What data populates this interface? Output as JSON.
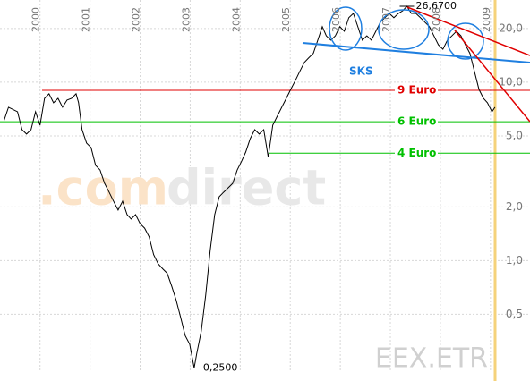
{
  "chart_data": {
    "type": "line",
    "log_scale": true,
    "grid": true,
    "color": "#000000",
    "xlim": [
      1999.2,
      2009.79
    ],
    "xticks": [
      2000,
      2001,
      2002,
      2003,
      2004,
      2005,
      2006,
      2007,
      2008,
      2009
    ],
    "ylim": [
      0.24,
      28.9
    ],
    "yticks": [
      {
        "value": 0.5,
        "label": "0,5"
      },
      {
        "value": 1,
        "label": "1,0"
      },
      {
        "value": 2,
        "label": "2,0"
      },
      {
        "value": 5,
        "label": "5,0"
      },
      {
        "value": 10,
        "label": "10,0"
      },
      {
        "value": 20,
        "label": "20,0"
      }
    ],
    "x": [
      1999.28,
      1999.37,
      1999.55,
      1999.64,
      1999.73,
      1999.82,
      1999.91,
      2000.0,
      2000.09,
      2000.18,
      2000.27,
      2000.36,
      2000.45,
      2000.54,
      2000.63,
      2000.72,
      2000.77,
      2000.84,
      2000.93,
      2001.02,
      2001.11,
      2001.2,
      2001.29,
      2001.38,
      2001.47,
      2001.56,
      2001.65,
      2001.74,
      2001.82,
      2001.91,
      2002.0,
      2002.09,
      2002.18,
      2002.27,
      2002.36,
      2002.45,
      2002.54,
      2002.63,
      2002.72,
      2002.81,
      2002.9,
      2002.99,
      2003.08,
      2003.13,
      2003.22,
      2003.31,
      2003.4,
      2003.49,
      2003.58,
      2003.67,
      2003.76,
      2003.85,
      2003.94,
      2004.03,
      2004.11,
      2004.2,
      2004.29,
      2004.38,
      2004.47,
      2004.56,
      2004.65,
      2004.74,
      2004.83,
      2004.92,
      2005.01,
      2005.1,
      2005.19,
      2005.28,
      2005.37,
      2005.46,
      2005.55,
      2005.64,
      2005.72,
      2005.81,
      2005.9,
      2005.99,
      2006.08,
      2006.17,
      2006.26,
      2006.35,
      2006.44,
      2006.53,
      2006.62,
      2006.71,
      2006.8,
      2006.89,
      2006.98,
      2007.07,
      2007.16,
      2007.25,
      2007.33,
      2007.42,
      2007.51,
      2007.6,
      2007.69,
      2007.78,
      2007.87,
      2007.96,
      2008.05,
      2008.14,
      2008.23,
      2008.32,
      2008.41,
      2008.5,
      2008.59,
      2008.68,
      2008.77,
      2008.86,
      2008.94,
      2009.03,
      2009.09
    ],
    "values": [
      6.09,
      7.24,
      6.83,
      5.42,
      5.12,
      5.42,
      6.83,
      5.74,
      8.12,
      8.61,
      7.67,
      8.12,
      7.24,
      7.94,
      8.12,
      8.61,
      7.67,
      5.42,
      4.56,
      4.3,
      3.42,
      3.22,
      2.71,
      2.42,
      2.15,
      1.92,
      2.15,
      1.81,
      1.71,
      1.81,
      1.61,
      1.52,
      1.36,
      1.08,
      0.96,
      0.9,
      0.85,
      0.72,
      0.6,
      0.48,
      0.38,
      0.34,
      0.25,
      0.3,
      0.4,
      0.64,
      1.14,
      1.81,
      2.28,
      2.42,
      2.56,
      2.71,
      3.22,
      3.62,
      4.06,
      4.83,
      5.42,
      5.12,
      5.42,
      3.8,
      5.74,
      6.45,
      7.24,
      8.12,
      9.12,
      10.2,
      11.5,
      12.9,
      13.7,
      14.5,
      17.2,
      20.5,
      18.2,
      17.2,
      18.2,
      20.5,
      19.3,
      23.0,
      24.3,
      20.5,
      17.2,
      18.2,
      17.2,
      19.3,
      21.7,
      23.0,
      24.3,
      23.0,
      24.3,
      25.2,
      26.67,
      24.3,
      24.3,
      23.0,
      21.7,
      20.5,
      18.2,
      16.2,
      15.3,
      17.2,
      18.2,
      19.3,
      18.2,
      16.2,
      14.5,
      11.5,
      9.12,
      8.12,
      7.67,
      6.83,
      7.24
    ],
    "levels": [
      {
        "value": 9,
        "label": "9 Euro",
        "color": "#e00000"
      },
      {
        "value": 6,
        "label": "6 Euro",
        "color": "#00c000"
      },
      {
        "value": 4,
        "label": "4 Euro",
        "color": "#00c000"
      }
    ],
    "annotations": [
      {
        "x": 2007.33,
        "value": 26.67,
        "label": "26,6700"
      },
      {
        "x": 2003.08,
        "value": 0.25,
        "label": "0,2500"
      }
    ],
    "pattern_label": "SKS",
    "watermark": [
      ".com",
      "direct"
    ],
    "symbol": "EEX.ETR"
  }
}
